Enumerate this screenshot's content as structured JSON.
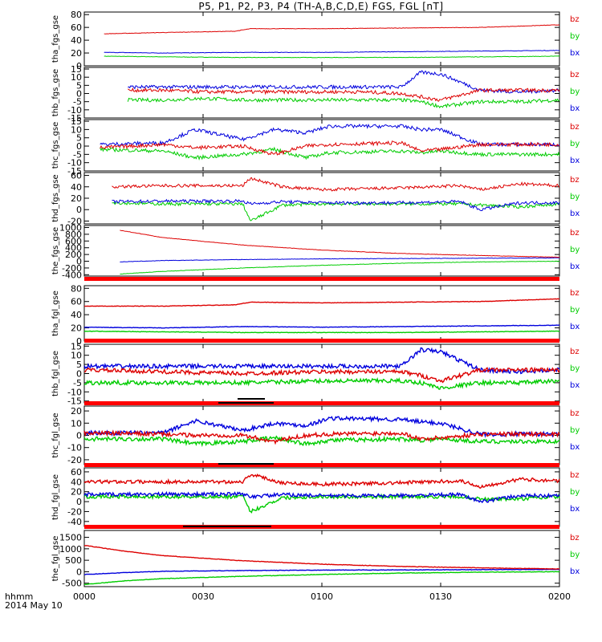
{
  "title": "P5, P1, P2, P3, P4 (TH-A,B,C,D,E) FGS, FGL [nT]",
  "time_axis": {
    "label_line1": "hhmm",
    "label_line2": "2014 May 10",
    "ticks": [
      "0000",
      "0030",
      "0100",
      "0130",
      "0200"
    ],
    "range_minutes": [
      0,
      120
    ]
  },
  "colors": {
    "bz": "#dd0000",
    "by": "#00cc00",
    "bx": "#0000dd",
    "frame": "#000000",
    "flag_bar": "#ff0000"
  },
  "chart_data": [
    {
      "type": "line",
      "ylabel": "tha_fgs_gse",
      "yticks": [
        "80",
        "60",
        "40",
        "20",
        "0"
      ],
      "ylim": [
        0,
        84
      ],
      "legend": [
        "bz",
        "by",
        "bx"
      ],
      "series": [
        {
          "name": "bz",
          "x": [
            5,
            20,
            38,
            42,
            60,
            80,
            100,
            120
          ],
          "y": [
            50,
            52,
            54,
            58,
            58,
            59,
            60,
            64
          ]
        },
        {
          "name": "by",
          "x": [
            5,
            20,
            40,
            60,
            80,
            100,
            120
          ],
          "y": [
            15,
            14,
            13,
            13,
            13,
            14,
            15
          ]
        },
        {
          "name": "bx",
          "x": [
            5,
            20,
            40,
            60,
            80,
            100,
            120
          ],
          "y": [
            21,
            20,
            21,
            21,
            22,
            23,
            24
          ]
        }
      ]
    },
    {
      "type": "line",
      "ylabel": "thb_fgs_gse",
      "yticks": [
        "15",
        "10",
        "5",
        "0",
        "-5",
        "-10",
        "-15"
      ],
      "ylim": [
        -15,
        16
      ],
      "legend": [
        "bz",
        "by",
        "bx"
      ],
      "series": [
        {
          "name": "bz",
          "x": [
            11,
            20,
            30,
            40,
            50,
            60,
            70,
            80,
            85,
            90,
            100,
            110,
            120
          ],
          "y": [
            2,
            2,
            1,
            1,
            1,
            1,
            1,
            0,
            -2,
            -4,
            2,
            2,
            2
          ]
        },
        {
          "name": "by",
          "x": [
            11,
            20,
            30,
            40,
            50,
            60,
            70,
            80,
            85,
            90,
            100,
            110,
            120
          ],
          "y": [
            -4,
            -4,
            -3,
            -4,
            -4,
            -4,
            -4,
            -4,
            -5,
            -8,
            -5,
            -5,
            -4
          ]
        },
        {
          "name": "bx",
          "x": [
            11,
            20,
            30,
            40,
            50,
            60,
            70,
            80,
            85,
            90,
            100,
            110,
            120
          ],
          "y": [
            4,
            4,
            4,
            4,
            4,
            4,
            4,
            4,
            13,
            12,
            2,
            1,
            2
          ]
        }
      ]
    },
    {
      "type": "line",
      "ylabel": "thc_fgs_gse",
      "yticks": [
        "15",
        "10",
        "5",
        "0",
        "-5",
        "-10",
        "-15"
      ],
      "ylim": [
        -15,
        16
      ],
      "legend": [
        "bz",
        "by",
        "bx"
      ],
      "series": [
        {
          "name": "bz",
          "x": [
            4,
            20,
            28,
            40,
            48,
            56,
            62,
            80,
            85,
            90,
            100,
            120
          ],
          "y": [
            -1,
            1,
            -1,
            0,
            -5,
            0,
            1,
            2,
            -3,
            -2,
            1,
            1
          ]
        },
        {
          "name": "by",
          "x": [
            4,
            20,
            28,
            40,
            48,
            56,
            62,
            80,
            85,
            90,
            100,
            120
          ],
          "y": [
            -2,
            -3,
            -7,
            -5,
            -2,
            -7,
            -4,
            -3,
            -4,
            -3,
            -5,
            -5
          ]
        },
        {
          "name": "bx",
          "x": [
            4,
            20,
            28,
            40,
            48,
            56,
            62,
            80,
            85,
            90,
            100,
            120
          ],
          "y": [
            1,
            2,
            10,
            4,
            10,
            8,
            12,
            12,
            10,
            10,
            1,
            1
          ]
        }
      ]
    },
    {
      "type": "line",
      "ylabel": "thd_fgs_gse",
      "yticks": [
        "60",
        "40",
        "20",
        "0",
        "-20"
      ],
      "ylim": [
        -25,
        65
      ],
      "legend": [
        "bz",
        "by",
        "bx"
      ],
      "series": [
        {
          "name": "bz",
          "x": [
            7,
            20,
            40,
            42,
            50,
            60,
            80,
            95,
            100,
            110,
            120
          ],
          "y": [
            40,
            42,
            42,
            55,
            40,
            35,
            38,
            42,
            35,
            45,
            42
          ]
        },
        {
          "name": "by",
          "x": [
            7,
            20,
            40,
            42,
            50,
            60,
            80,
            95,
            100,
            110,
            120
          ],
          "y": [
            12,
            10,
            10,
            -20,
            8,
            10,
            10,
            10,
            8,
            5,
            10
          ]
        },
        {
          "name": "bx",
          "x": [
            7,
            20,
            40,
            42,
            50,
            60,
            80,
            95,
            100,
            110,
            120
          ],
          "y": [
            14,
            15,
            15,
            10,
            14,
            12,
            12,
            14,
            0,
            12,
            12
          ]
        }
      ]
    },
    {
      "type": "line",
      "ylabel": "the_fgs_gse",
      "yticks": [
        "1000",
        "800",
        "600",
        "400",
        "200",
        "0",
        "-200",
        "-400"
      ],
      "ylim": [
        -440,
        1060
      ],
      "legend": [
        "bz",
        "by",
        "bx"
      ],
      "series": [
        {
          "name": "bz",
          "x": [
            9,
            20,
            40,
            60,
            80,
            100,
            120
          ],
          "y": [
            920,
            700,
            480,
            330,
            230,
            170,
            120
          ]
        },
        {
          "name": "by",
          "x": [
            9,
            20,
            40,
            60,
            80,
            100,
            120
          ],
          "y": [
            -380,
            -300,
            -200,
            -120,
            -60,
            -20,
            0
          ]
        },
        {
          "name": "bx",
          "x": [
            9,
            20,
            40,
            60,
            80,
            100,
            120
          ],
          "y": [
            -20,
            20,
            50,
            70,
            80,
            90,
            100
          ]
        }
      ]
    },
    {
      "type": "line",
      "ylabel": "tha_fgl_gse",
      "yticks": [
        "80",
        "60",
        "40",
        "20",
        "0"
      ],
      "ylim": [
        0,
        84
      ],
      "legend": [
        "bz",
        "by",
        "bx"
      ],
      "series": [
        {
          "name": "bz",
          "x": [
            0,
            20,
            38,
            42,
            60,
            80,
            100,
            120
          ],
          "y": [
            53,
            53,
            55,
            59,
            58,
            59,
            60,
            64
          ]
        },
        {
          "name": "by",
          "x": [
            0,
            20,
            40,
            60,
            80,
            100,
            120
          ],
          "y": [
            15,
            14,
            13,
            13,
            13,
            14,
            15
          ]
        },
        {
          "name": "bx",
          "x": [
            0,
            20,
            40,
            60,
            80,
            100,
            120
          ],
          "y": [
            21,
            20,
            22,
            21,
            22,
            23,
            24
          ]
        }
      ]
    },
    {
      "type": "line",
      "ylabel": "thb_fgl_gse",
      "yticks": [
        "15",
        "10",
        "5",
        "0",
        "-5",
        "-10",
        "-15"
      ],
      "ylim": [
        -16,
        16
      ],
      "legend": [
        "bz",
        "by",
        "bx"
      ],
      "series": [
        {
          "name": "bz",
          "x": [
            0,
            20,
            40,
            60,
            80,
            85,
            90,
            100,
            110,
            120
          ],
          "y": [
            2,
            1,
            0,
            1,
            1,
            -1,
            -4,
            2,
            2,
            2
          ]
        },
        {
          "name": "by",
          "x": [
            0,
            20,
            40,
            60,
            80,
            85,
            90,
            100,
            110,
            120
          ],
          "y": [
            -5,
            -5,
            -5,
            -4,
            -4,
            -5,
            -8,
            -5,
            -5,
            -4
          ]
        },
        {
          "name": "bx",
          "x": [
            0,
            20,
            40,
            60,
            80,
            85,
            90,
            100,
            110,
            120
          ],
          "y": [
            4,
            4,
            4,
            4,
            4,
            13,
            12,
            2,
            1,
            2
          ]
        }
      ]
    },
    {
      "type": "line",
      "ylabel": "thc_fgl_gse",
      "yticks": [
        "20",
        "10",
        "0",
        "-10",
        "-20"
      ],
      "ylim": [
        -24,
        24
      ],
      "legend": [
        "bz",
        "by",
        "bx"
      ],
      "series": [
        {
          "name": "bz",
          "x": [
            0,
            20,
            28,
            40,
            48,
            56,
            62,
            80,
            85,
            90,
            100,
            120
          ],
          "y": [
            2,
            1,
            0,
            0,
            -5,
            0,
            1,
            2,
            -3,
            -2,
            1,
            1
          ]
        },
        {
          "name": "by",
          "x": [
            0,
            20,
            28,
            40,
            48,
            56,
            62,
            80,
            85,
            90,
            100,
            120
          ],
          "y": [
            -3,
            -3,
            -7,
            -5,
            -2,
            -7,
            -4,
            -3,
            -4,
            -3,
            -5,
            -5
          ]
        },
        {
          "name": "bx",
          "x": [
            0,
            20,
            28,
            40,
            48,
            56,
            62,
            80,
            85,
            90,
            100,
            120
          ],
          "y": [
            2,
            2,
            12,
            4,
            10,
            8,
            14,
            13,
            11,
            10,
            1,
            1
          ]
        }
      ]
    },
    {
      "type": "line",
      "ylabel": "thd_fgl_gse",
      "yticks": [
        "60",
        "40",
        "20",
        "0",
        "-20",
        "-40"
      ],
      "ylim": [
        -50,
        68
      ],
      "legend": [
        "bz",
        "by",
        "bx"
      ],
      "series": [
        {
          "name": "bz",
          "x": [
            0,
            20,
            40,
            42,
            50,
            60,
            80,
            95,
            100,
            110,
            120
          ],
          "y": [
            40,
            40,
            40,
            55,
            38,
            35,
            38,
            42,
            30,
            45,
            42
          ]
        },
        {
          "name": "by",
          "x": [
            0,
            20,
            40,
            42,
            50,
            60,
            80,
            95,
            100,
            110,
            120
          ],
          "y": [
            10,
            10,
            10,
            -20,
            8,
            10,
            10,
            10,
            5,
            5,
            10
          ]
        },
        {
          "name": "bx",
          "x": [
            0,
            20,
            40,
            42,
            50,
            60,
            80,
            95,
            100,
            110,
            120
          ],
          "y": [
            14,
            15,
            15,
            10,
            14,
            12,
            12,
            14,
            0,
            12,
            12
          ]
        }
      ]
    },
    {
      "type": "line",
      "ylabel": "the_fgl_gse",
      "yticks": [
        "1500",
        "1000",
        "500",
        "0",
        "-500"
      ],
      "ylim": [
        -650,
        1800
      ],
      "legend": [
        "bz",
        "by",
        "bx"
      ],
      "series": [
        {
          "name": "bz",
          "x": [
            0,
            10,
            20,
            40,
            60,
            80,
            100,
            120
          ],
          "y": [
            1150,
            900,
            700,
            480,
            330,
            230,
            170,
            120
          ]
        },
        {
          "name": "by",
          "x": [
            0,
            10,
            20,
            40,
            60,
            80,
            100,
            120
          ],
          "y": [
            -560,
            -400,
            -300,
            -200,
            -120,
            -60,
            -20,
            0
          ]
        },
        {
          "name": "bx",
          "x": [
            0,
            10,
            20,
            40,
            60,
            80,
            100,
            120
          ],
          "y": [
            -120,
            -40,
            20,
            50,
            70,
            80,
            90,
            100
          ]
        }
      ]
    }
  ]
}
